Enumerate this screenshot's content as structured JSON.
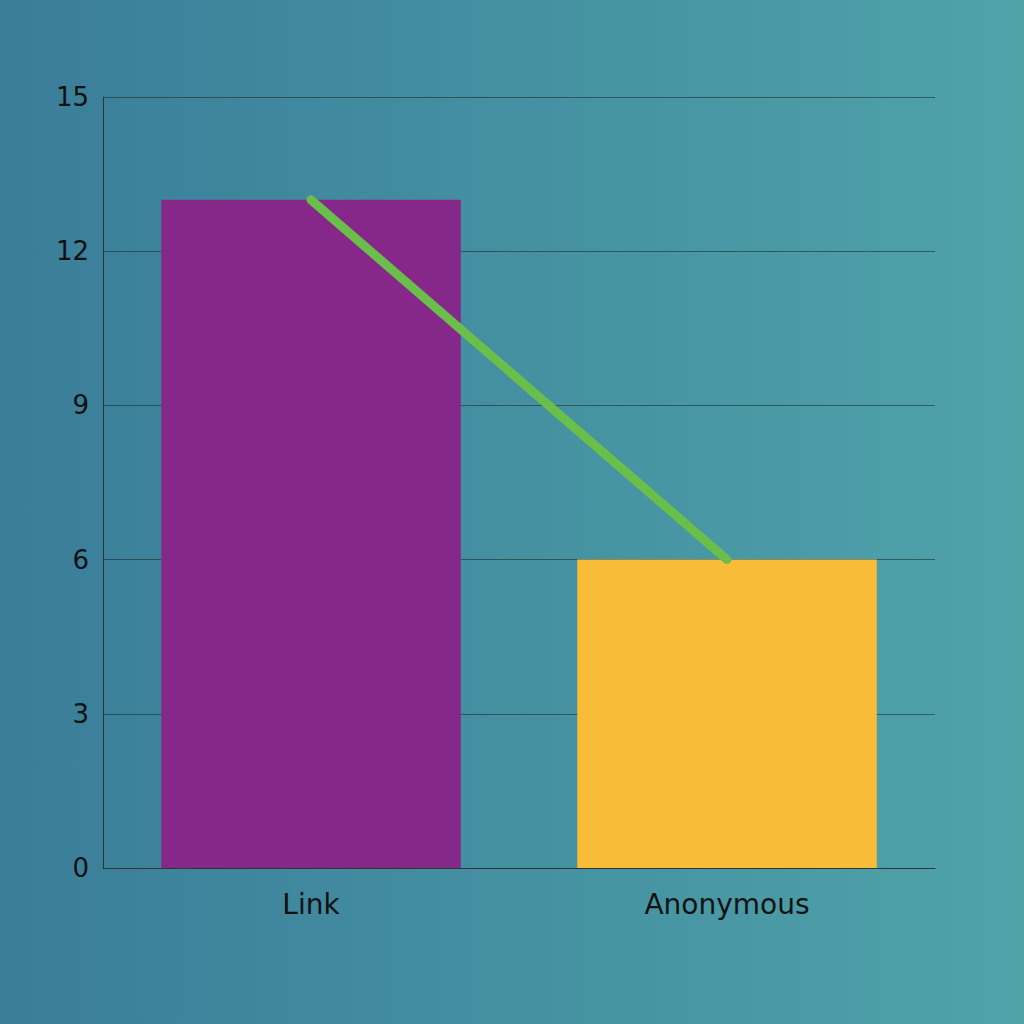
{
  "chart_data": {
    "type": "bar",
    "categories": [
      "Link",
      "Anonymous"
    ],
    "series": [
      {
        "type": "bar",
        "values": [
          13,
          6
        ],
        "colors": [
          "#86288a",
          "#f8bd38"
        ]
      },
      {
        "type": "line",
        "values": [
          13,
          6
        ],
        "color": "#6abf4b"
      }
    ],
    "ylim": [
      0,
      15
    ],
    "yticks": [
      0,
      3,
      6,
      9,
      12,
      15
    ],
    "grid": true
  }
}
